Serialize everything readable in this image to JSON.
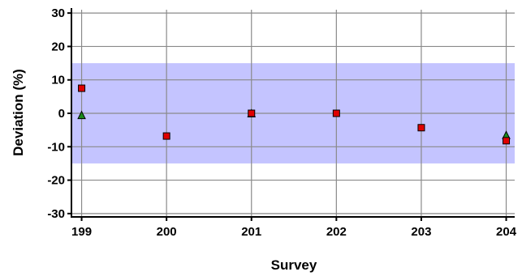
{
  "chart_data": {
    "type": "scatter",
    "title": "",
    "xlabel": "Survey",
    "ylabel": "Deviation (%)",
    "x_ticks": [
      199,
      200,
      201,
      202,
      203,
      204
    ],
    "y_ticks": [
      -30,
      -20,
      -10,
      0,
      10,
      20,
      30
    ],
    "xlim": [
      198.88,
      204.1
    ],
    "ylim": [
      -31,
      31
    ],
    "grid": true,
    "band": {
      "from": -15,
      "to": 15,
      "color": "#c4c4ff"
    },
    "colors": {
      "grid": "#8a8a8a",
      "axis": "#000000",
      "square": "#e00000",
      "triangle": "#1a8a1a"
    },
    "series": [
      {
        "marker": "triangle",
        "points": [
          {
            "x": 199,
            "y": -0.5
          },
          {
            "x": 201,
            "y": 0
          },
          {
            "x": 204,
            "y": -6.5
          }
        ]
      },
      {
        "marker": "square",
        "points": [
          {
            "x": 199,
            "y": 7.5
          },
          {
            "x": 200,
            "y": -6.8
          },
          {
            "x": 201,
            "y": 0
          },
          {
            "x": 202,
            "y": 0
          },
          {
            "x": 203,
            "y": -4.3
          },
          {
            "x": 204,
            "y": -8.2
          }
        ]
      }
    ]
  }
}
